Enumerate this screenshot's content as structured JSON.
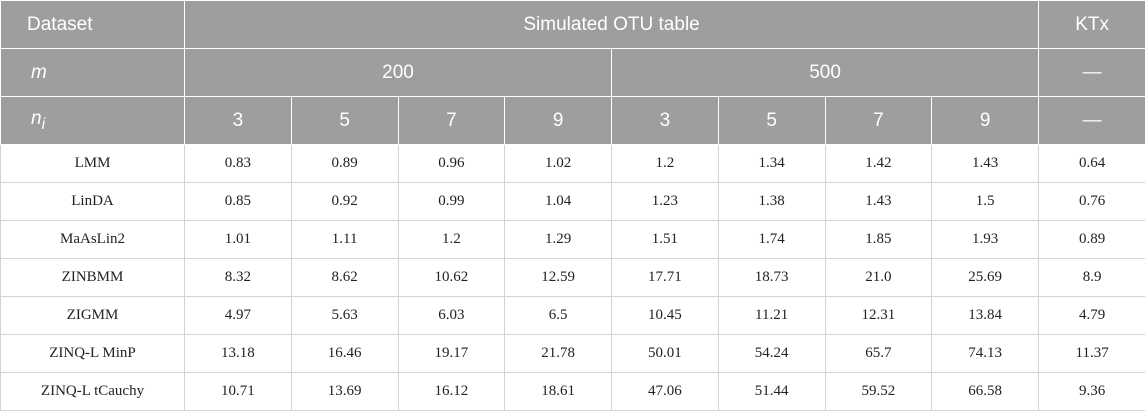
{
  "header": {
    "row1": [
      "Dataset",
      "Simulated OTU table",
      "KTx"
    ],
    "row2": {
      "label": "m",
      "groups": [
        "200",
        "500"
      ],
      "last": "—"
    },
    "row3": {
      "label": "n",
      "label_sub": "i",
      "values": [
        "3",
        "5",
        "7",
        "9",
        "3",
        "5",
        "7",
        "9"
      ],
      "last": "—"
    }
  },
  "table": {
    "rows": [
      [
        "LMM",
        "0.83",
        "0.89",
        "0.96",
        "1.02",
        "1.2",
        "1.34",
        "1.42",
        "1.43",
        "0.64"
      ],
      [
        "LinDA",
        "0.85",
        "0.92",
        "0.99",
        "1.04",
        "1.23",
        "1.38",
        "1.43",
        "1.5",
        "0.76"
      ],
      [
        "MaAsLin2",
        "1.01",
        "1.11",
        "1.2",
        "1.29",
        "1.51",
        "1.74",
        "1.85",
        "1.93",
        "0.89"
      ],
      [
        "ZINBMM",
        "8.32",
        "8.62",
        "10.62",
        "12.59",
        "17.71",
        "18.73",
        "21.0",
        "25.69",
        "8.9"
      ],
      [
        "ZIGMM",
        "4.97",
        "5.63",
        "6.03",
        "6.5",
        "10.45",
        "11.21",
        "12.31",
        "13.84",
        "4.79"
      ],
      [
        "ZINQ-L MinP",
        "13.18",
        "16.46",
        "19.17",
        "21.78",
        "50.01",
        "54.24",
        "65.7",
        "74.13",
        "11.37"
      ],
      [
        "ZINQ-L tCauchy",
        "10.71",
        "13.69",
        "16.12",
        "18.61",
        "47.06",
        "51.44",
        "59.52",
        "66.58",
        "9.36"
      ]
    ]
  }
}
